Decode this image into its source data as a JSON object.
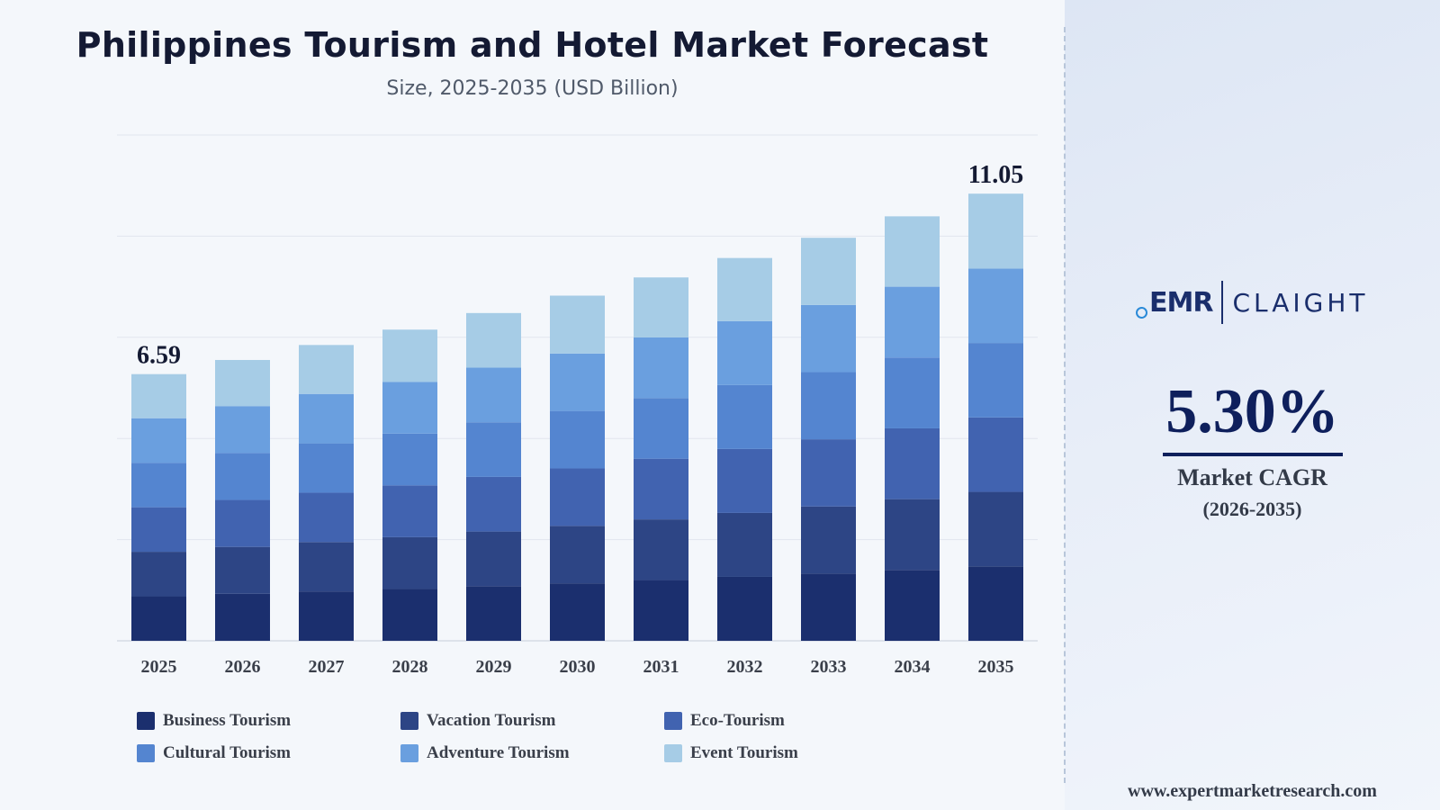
{
  "title": "Philippines Tourism and Hotel Market Forecast",
  "subtitle": "Size, 2025-2035 (USD Billion)",
  "logo": {
    "left": "EMR",
    "right": "CLAIGHT"
  },
  "cagr": {
    "value": "5.30%",
    "label": "Market CAGR",
    "period": "(2026-2035)"
  },
  "footer": "www.expertmarketresearch.com",
  "chart_data": {
    "type": "bar",
    "stacked": true,
    "title": "Philippines Tourism and Hotel Market Forecast",
    "subtitle": "Size, 2025-2035 (USD Billion)",
    "categories": [
      "2025",
      "2026",
      "2027",
      "2028",
      "2029",
      "2030",
      "2031",
      "2032",
      "2033",
      "2034",
      "2035"
    ],
    "totals": [
      6.59,
      6.94,
      7.31,
      7.69,
      8.1,
      8.53,
      8.98,
      9.46,
      9.96,
      10.49,
      11.05
    ],
    "end_labels": [
      "6.59",
      "11.05"
    ],
    "series": [
      {
        "name": "Business Tourism",
        "color": "#1b2f6e",
        "values": [
          1.1,
          1.16,
          1.22,
          1.28,
          1.35,
          1.42,
          1.5,
          1.58,
          1.66,
          1.75,
          1.84
        ]
      },
      {
        "name": "Vacation Tourism",
        "color": "#2d4585",
        "values": [
          1.1,
          1.16,
          1.22,
          1.28,
          1.35,
          1.42,
          1.5,
          1.58,
          1.66,
          1.75,
          1.84
        ]
      },
      {
        "name": "Eco-Tourism",
        "color": "#4163b0",
        "values": [
          1.1,
          1.16,
          1.22,
          1.28,
          1.35,
          1.42,
          1.5,
          1.58,
          1.66,
          1.75,
          1.84
        ]
      },
      {
        "name": "Cultural Tourism",
        "color": "#5485d0",
        "values": [
          1.1,
          1.16,
          1.22,
          1.28,
          1.35,
          1.42,
          1.5,
          1.58,
          1.66,
          1.75,
          1.84
        ]
      },
      {
        "name": "Adventure Tourism",
        "color": "#6a9fdf",
        "values": [
          1.1,
          1.16,
          1.22,
          1.28,
          1.35,
          1.42,
          1.5,
          1.58,
          1.66,
          1.75,
          1.84
        ]
      },
      {
        "name": "Event Tourism",
        "color": "#a6cce6",
        "values": [
          1.09,
          1.14,
          1.21,
          1.29,
          1.35,
          1.43,
          1.48,
          1.56,
          1.66,
          1.74,
          1.85
        ]
      }
    ],
    "ylim": [
      0,
      12.5
    ],
    "grid": true,
    "legend": "bottom"
  }
}
